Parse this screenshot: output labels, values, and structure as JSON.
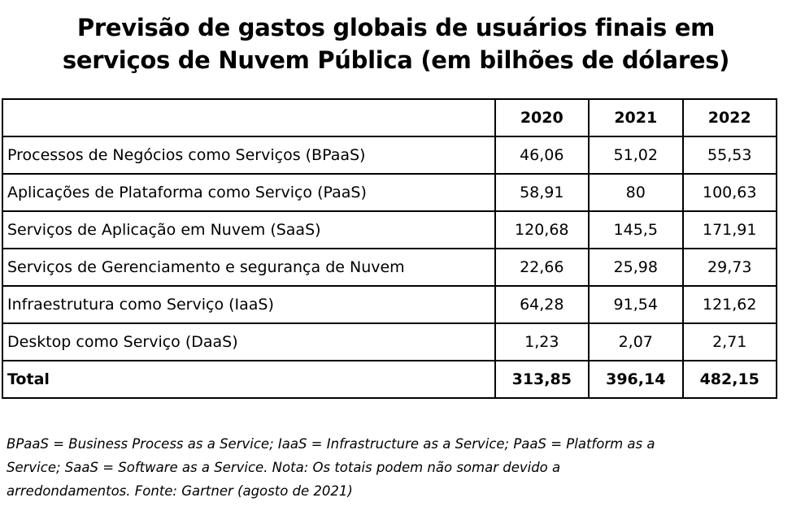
{
  "title_line1": "Previsão de gastos globais de usuários finais em",
  "title_line2": "serviços de Nuvem Pública (em bilhões de dólares)",
  "chart_data": {
    "type": "table",
    "title": "Previsão de gastos globais de usuários finais em serviços de Nuvem Pública (em bilhões de dólares)",
    "columns": [
      "",
      "2020",
      "2021",
      "2022"
    ],
    "rows": [
      {
        "label": "Processos de Negócios como Serviços (BPaaS)",
        "values": [
          "46,06",
          "51,02",
          "55,53"
        ]
      },
      {
        "label": "Aplicações de Plataforma como Serviço (PaaS)",
        "values": [
          "58,91",
          "80",
          "100,63"
        ]
      },
      {
        "label": "Serviços de Aplicação em Nuvem (SaaS)",
        "values": [
          "120,68",
          "145,5",
          "171,91"
        ]
      },
      {
        "label": "Serviços de Gerenciamento e segurança de Nuvem",
        "values": [
          "22,66",
          "25,98",
          "29,73"
        ]
      },
      {
        "label": "Infraestrutura como Serviço (IaaS)",
        "values": [
          "64,28",
          "91,54",
          "121,62"
        ]
      },
      {
        "label": "Desktop como Serviço (DaaS)",
        "values": [
          "1,23",
          "2,07",
          "2,71"
        ]
      }
    ],
    "total": {
      "label": "Total",
      "values": [
        "313,85",
        "396,14",
        "482,15"
      ]
    }
  },
  "note_line1": "BPaaS = Business Process as a Service; IaaS = Infrastructure as a Service; PaaS = Platform as a",
  "note_line2": "Service; SaaS = Software as a Service. Nota: Os totais podem não somar devido a",
  "note_line3": "arredondamentos. Fonte: Gartner (agosto de 2021)"
}
